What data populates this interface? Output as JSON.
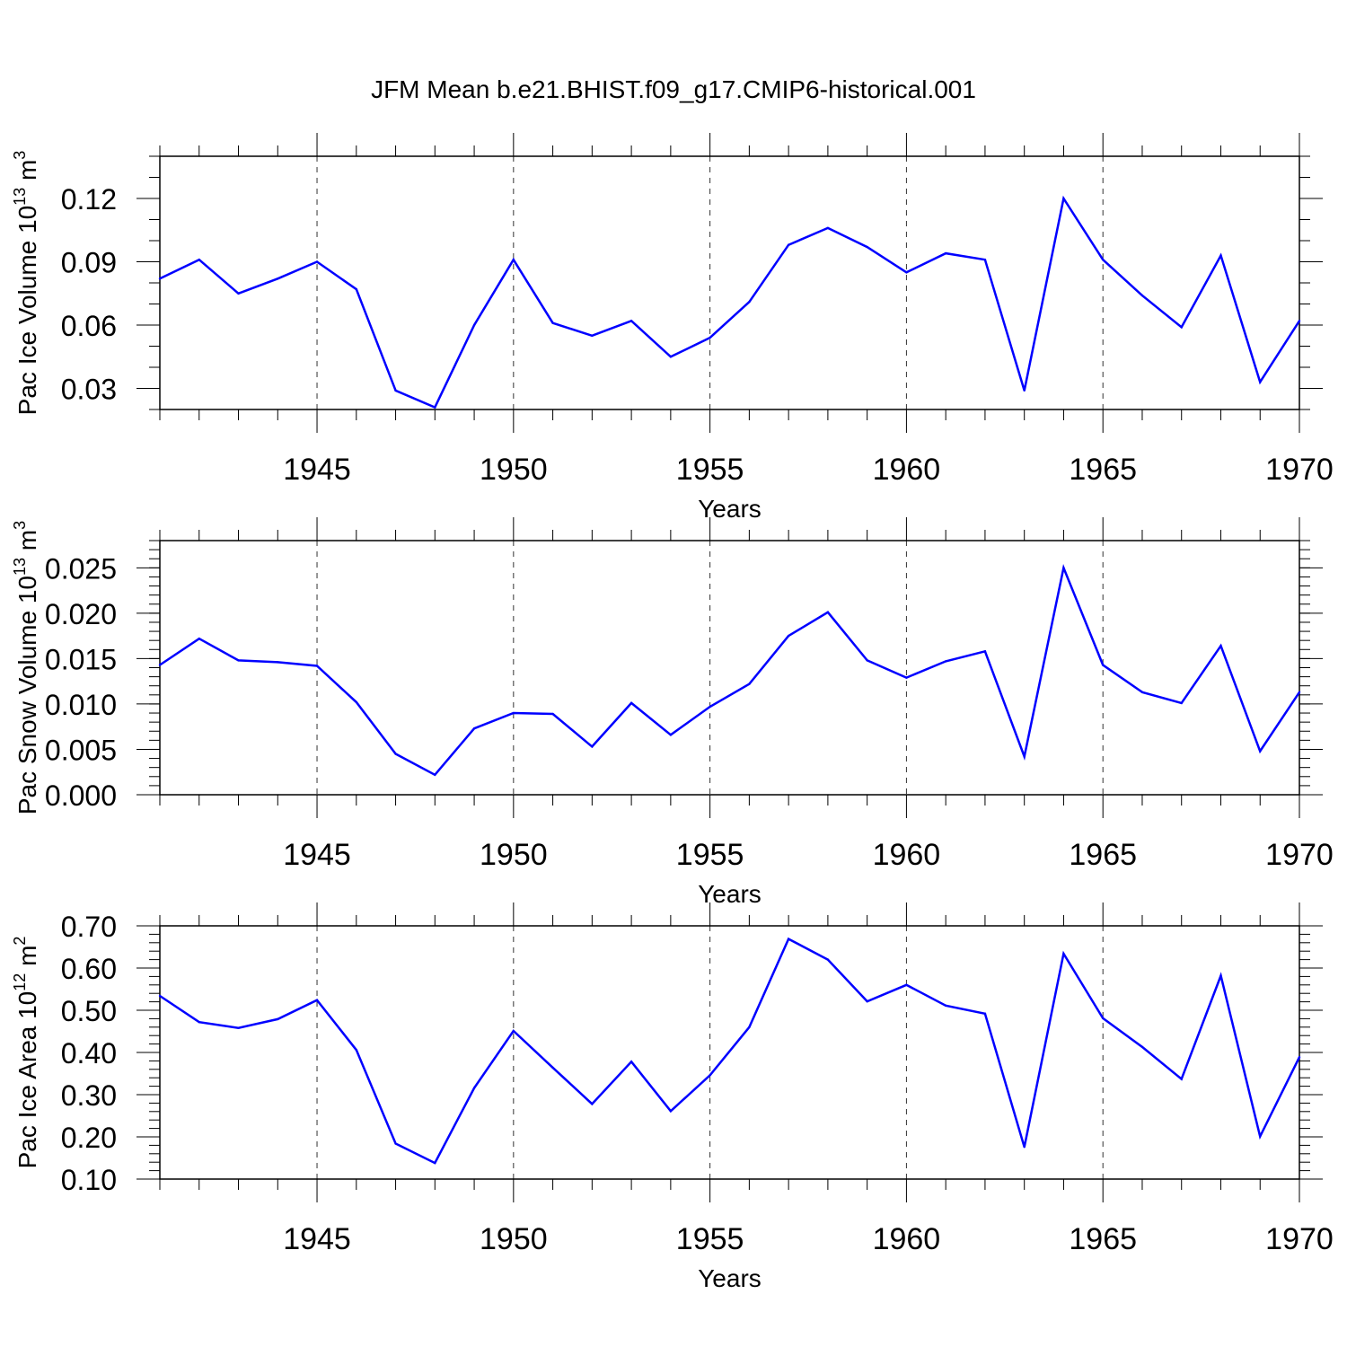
{
  "title": "JFM Mean b.e21.BHIST.f09_g17.CMIP6-historical.001",
  "line_color": "#0000ff",
  "chart_data": [
    {
      "type": "line",
      "title": "",
      "xlabel": "Years",
      "ylabel": {
        "text": "Pac Ice Volume 10",
        "exp": "13",
        "unit": " m",
        "unit_exp": "3"
      },
      "xlim": [
        1941,
        1970
      ],
      "ylim": [
        0.02,
        0.14
      ],
      "xticks": [
        1945,
        1950,
        1955,
        1960,
        1965,
        1970
      ],
      "yticks": [
        0.03,
        0.06,
        0.09,
        0.12
      ],
      "ytick_labels": [
        "0.03",
        "0.06",
        "0.09",
        "0.12"
      ],
      "yminor_step": 0.01,
      "grid": "x-major dashed",
      "x": [
        1941,
        1942,
        1943,
        1944,
        1945,
        1946,
        1947,
        1948,
        1949,
        1950,
        1951,
        1952,
        1953,
        1954,
        1955,
        1956,
        1957,
        1958,
        1959,
        1960,
        1961,
        1962,
        1963,
        1964,
        1965,
        1966,
        1967,
        1968,
        1969,
        1970
      ],
      "values": [
        0.082,
        0.091,
        0.075,
        0.082,
        0.09,
        0.077,
        0.029,
        0.021,
        0.06,
        0.091,
        0.061,
        0.055,
        0.062,
        0.045,
        0.054,
        0.071,
        0.098,
        0.106,
        0.097,
        0.085,
        0.094,
        0.091,
        0.029,
        0.12,
        0.091,
        0.074,
        0.059,
        0.093,
        0.033,
        0.062
      ]
    },
    {
      "type": "line",
      "title": "",
      "xlabel": "Years",
      "ylabel": {
        "text": "Pac Snow Volume 10",
        "exp": "13",
        "unit": " m",
        "unit_exp": "3"
      },
      "xlim": [
        1941,
        1970
      ],
      "ylim": [
        0.0,
        0.028
      ],
      "xticks": [
        1945,
        1950,
        1955,
        1960,
        1965,
        1970
      ],
      "yticks": [
        0.0,
        0.005,
        0.01,
        0.015,
        0.02,
        0.025
      ],
      "ytick_labels": [
        "0.000",
        "0.005",
        "0.010",
        "0.015",
        "0.020",
        "0.025"
      ],
      "yminor_step": 0.001,
      "grid": "x-major dashed",
      "x": [
        1941,
        1942,
        1943,
        1944,
        1945,
        1946,
        1947,
        1948,
        1949,
        1950,
        1951,
        1952,
        1953,
        1954,
        1955,
        1956,
        1957,
        1958,
        1959,
        1960,
        1961,
        1962,
        1963,
        1964,
        1965,
        1966,
        1967,
        1968,
        1969,
        1970
      ],
      "values": [
        0.0143,
        0.0172,
        0.0148,
        0.0146,
        0.0142,
        0.0102,
        0.0045,
        0.0022,
        0.0073,
        0.009,
        0.0089,
        0.0053,
        0.0101,
        0.0066,
        0.0097,
        0.0122,
        0.0175,
        0.0201,
        0.0148,
        0.0129,
        0.0147,
        0.0158,
        0.0042,
        0.025,
        0.0143,
        0.0113,
        0.0101,
        0.0164,
        0.0048,
        0.0113
      ]
    },
    {
      "type": "line",
      "title": "",
      "xlabel": "Years",
      "ylabel": {
        "text": "Pac Ice Area 10",
        "exp": "12",
        "unit": " m",
        "unit_exp": "2"
      },
      "xlim": [
        1941,
        1970
      ],
      "ylim": [
        0.1,
        0.7
      ],
      "xticks": [
        1945,
        1950,
        1955,
        1960,
        1965,
        1970
      ],
      "yticks": [
        0.1,
        0.2,
        0.3,
        0.4,
        0.5,
        0.6,
        0.7
      ],
      "ytick_labels": [
        "0.10",
        "0.20",
        "0.30",
        "0.40",
        "0.50",
        "0.60",
        "0.70"
      ],
      "yminor_step": 0.02,
      "grid": "x-major dashed",
      "x": [
        1941,
        1942,
        1943,
        1944,
        1945,
        1946,
        1947,
        1948,
        1949,
        1950,
        1951,
        1952,
        1953,
        1954,
        1955,
        1956,
        1957,
        1958,
        1959,
        1960,
        1961,
        1962,
        1963,
        1964,
        1965,
        1966,
        1967,
        1968,
        1969,
        1970
      ],
      "values": [
        0.534,
        0.472,
        0.458,
        0.479,
        0.524,
        0.406,
        0.184,
        0.138,
        0.316,
        0.451,
        0.364,
        0.278,
        0.378,
        0.261,
        0.346,
        0.46,
        0.669,
        0.62,
        0.521,
        0.56,
        0.511,
        0.492,
        0.176,
        0.634,
        0.481,
        0.413,
        0.337,
        0.582,
        0.201,
        0.389
      ]
    }
  ]
}
